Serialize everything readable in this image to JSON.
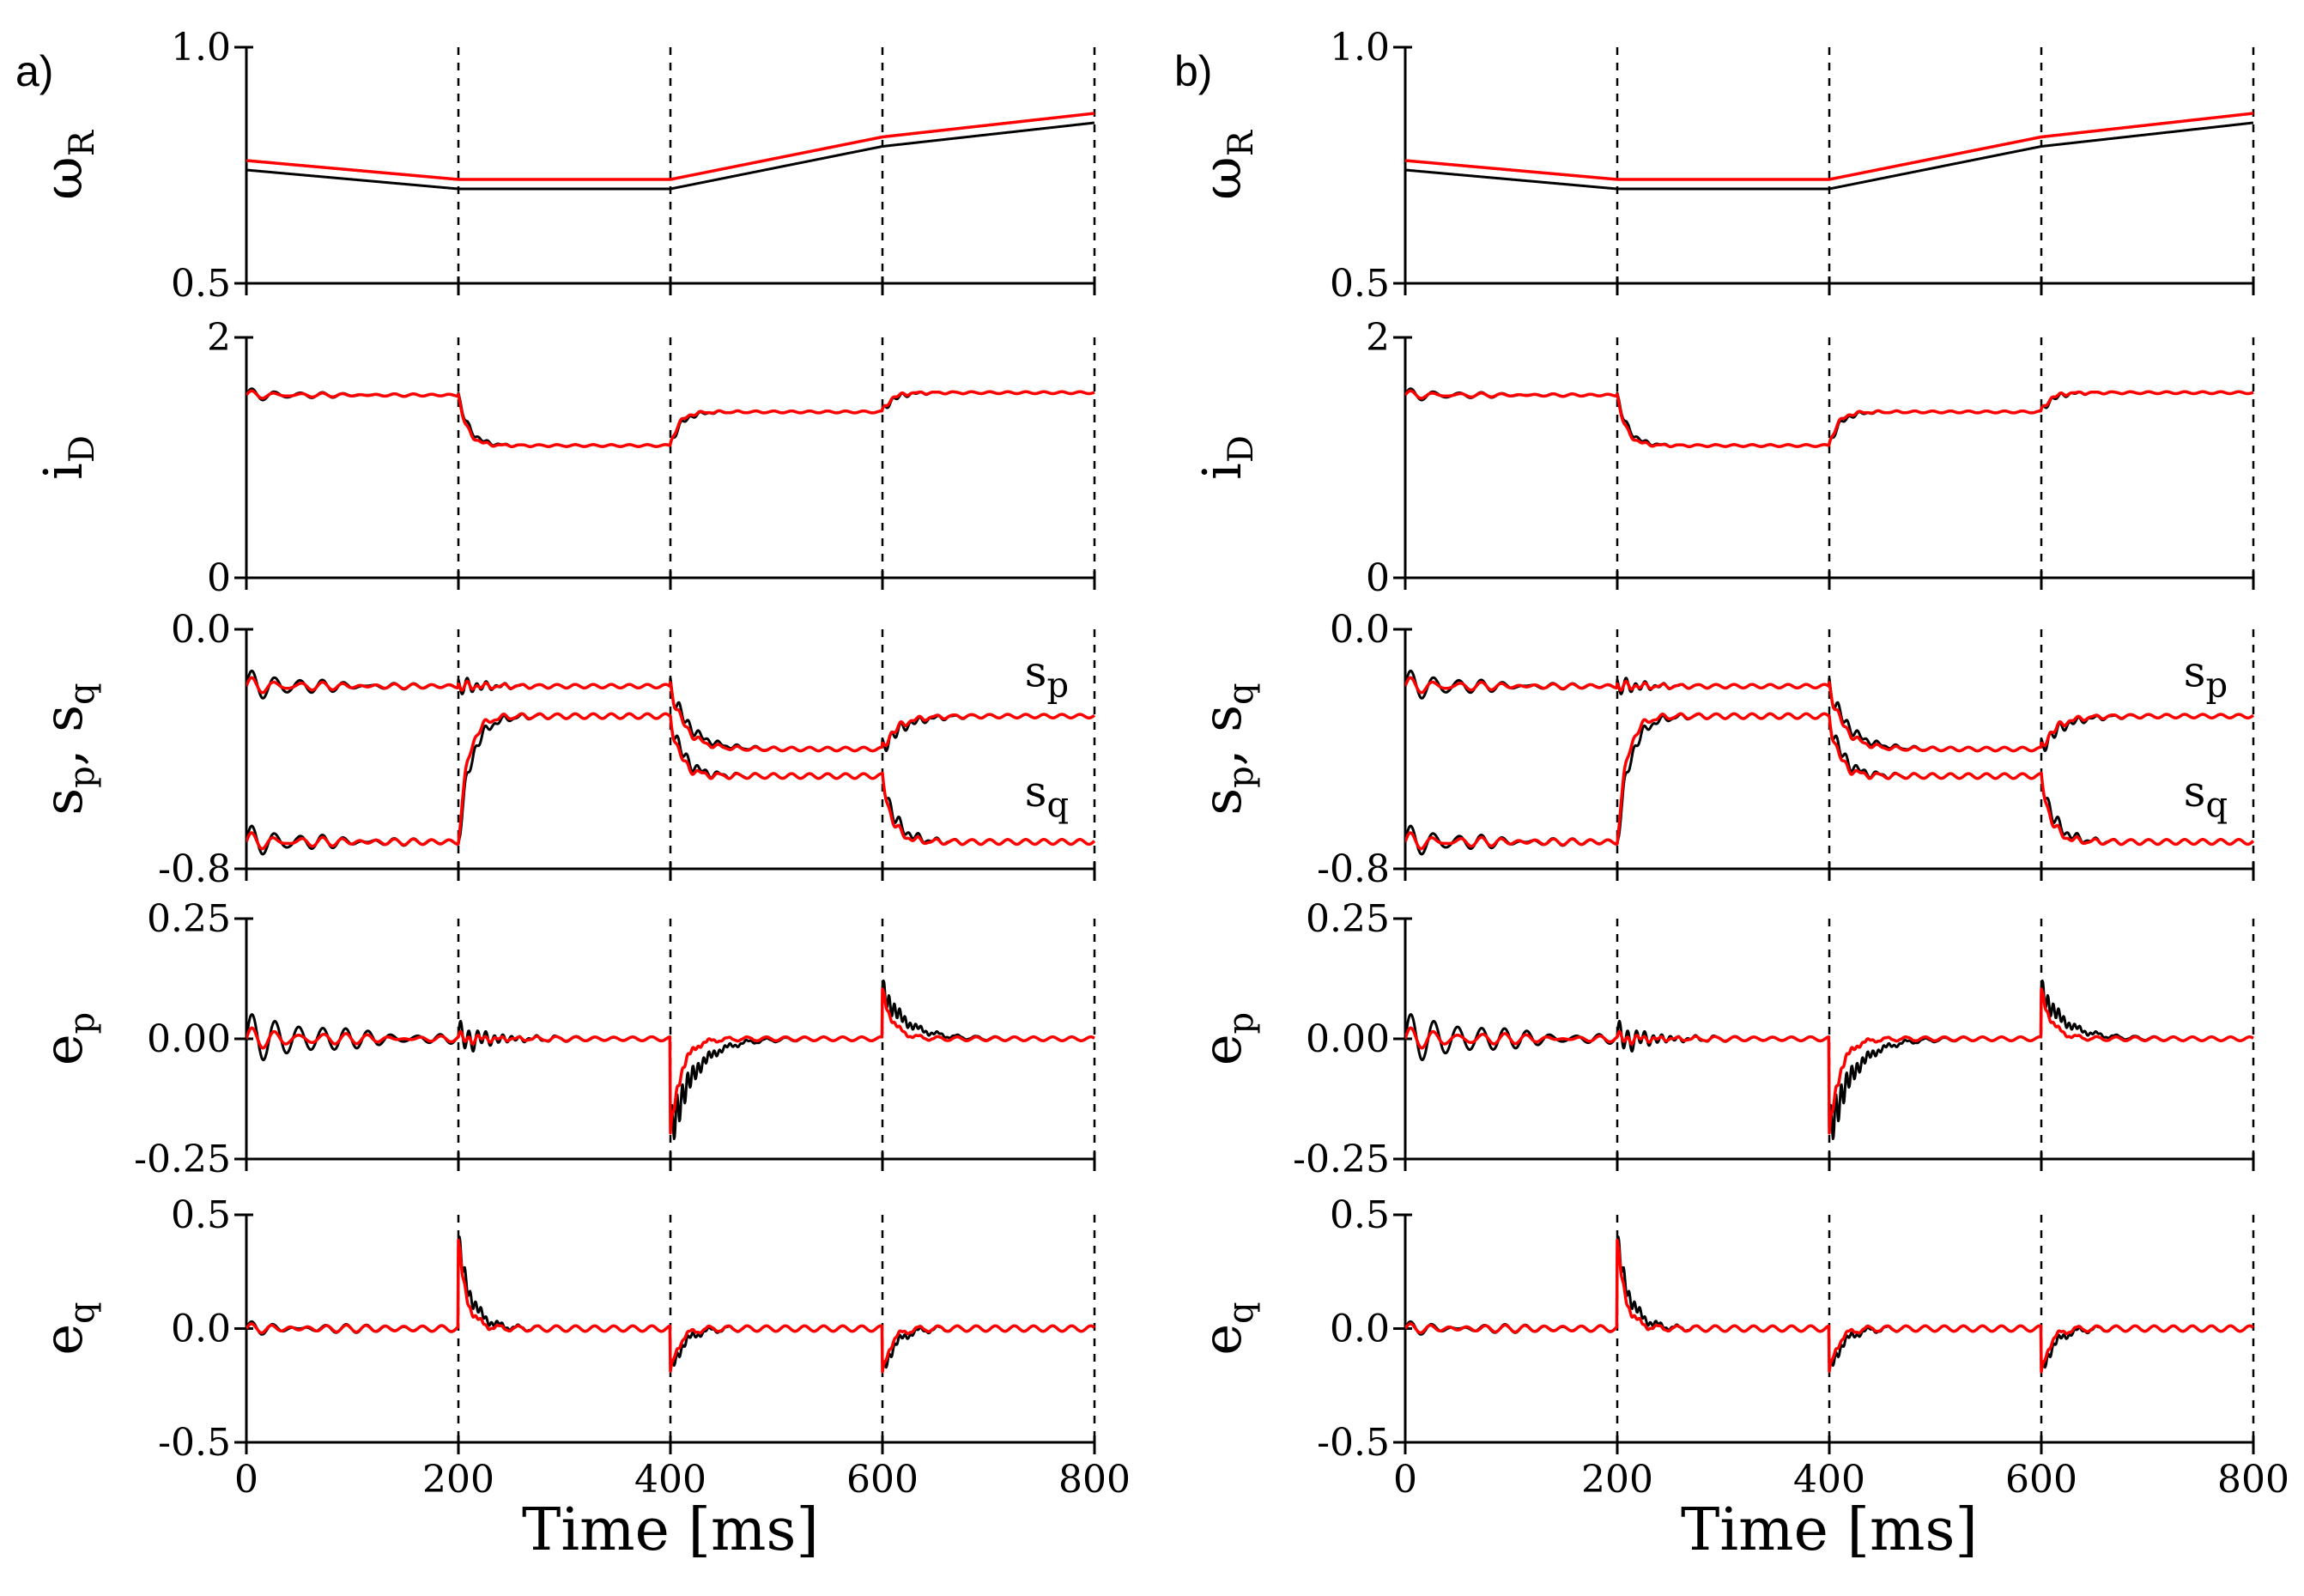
{
  "chart_data": [
    {
      "panel": "a)",
      "type": "line",
      "x_axis": {
        "label": "Time [ms]",
        "ticks": [
          "0",
          "200",
          "400",
          "600",
          "800"
        ],
        "range": [
          0,
          800
        ]
      },
      "event_times": [
        200,
        400,
        600
      ],
      "series_colors": {
        "reference": "#ff0000",
        "response": "#000000"
      },
      "subplots": [
        {
          "id": "omegaR",
          "ylabel": "ω",
          "ylabel_sub": "R",
          "ylim": [
            0.5,
            1.0
          ],
          "yticks": [
            "1.0",
            "0.5"
          ],
          "yticks_values": [
            1.0,
            0.5
          ]
        },
        {
          "id": "iD",
          "ylabel": "i",
          "ylabel_sub": "D",
          "ylim": [
            0,
            2
          ],
          "yticks": [
            "2",
            "0"
          ],
          "yticks_values": [
            2,
            0
          ]
        },
        {
          "id": "sp_sq",
          "ylabel_parts": [
            "s",
            "p",
            ", s",
            "q"
          ],
          "ylim": [
            -0.8,
            0.0
          ],
          "yticks": [
            "0.0",
            "-0.8"
          ],
          "yticks_values": [
            0.0,
            -0.8
          ],
          "annotations": [
            {
              "text": "s",
              "sub": "p"
            },
            {
              "text": "s",
              "sub": "q"
            }
          ]
        },
        {
          "id": "ep",
          "ylabel": "e",
          "ylabel_sub": "p",
          "ylim": [
            -0.25,
            0.25
          ],
          "yticks": [
            "0.25",
            "0.00",
            "-0.25"
          ],
          "yticks_values": [
            0.25,
            0.0,
            -0.25
          ]
        },
        {
          "id": "eq",
          "ylabel": "e",
          "ylabel_sub": "q",
          "ylim": [
            -0.5,
            0.5
          ],
          "yticks": [
            "0.5",
            "0.0",
            "-0.5"
          ],
          "yticks_values": [
            0.5,
            0.0,
            -0.5
          ]
        }
      ]
    },
    {
      "panel": "b)",
      "type": "line",
      "x_axis": {
        "label": "Time [ms]",
        "ticks": [
          "0",
          "200",
          "400",
          "600",
          "800"
        ],
        "range": [
          0,
          800
        ]
      },
      "event_times": [
        200,
        400,
        600
      ],
      "series_colors": {
        "reference": "#ff0000",
        "response": "#000000"
      },
      "subplots": [
        {
          "id": "omegaR",
          "ylabel": "ω",
          "ylabel_sub": "R",
          "ylim": [
            0.5,
            1.0
          ],
          "yticks": [
            "1.0",
            "0.5"
          ],
          "yticks_values": [
            1.0,
            0.5
          ]
        },
        {
          "id": "iD",
          "ylabel": "i",
          "ylabel_sub": "D",
          "ylim": [
            0,
            2
          ],
          "yticks": [
            "2",
            "0"
          ],
          "yticks_values": [
            2,
            0
          ]
        },
        {
          "id": "sp_sq",
          "ylabel_parts": [
            "s",
            "p",
            ", s",
            "q"
          ],
          "ylim": [
            -0.8,
            0.0
          ],
          "yticks": [
            "0.0",
            "-0.8"
          ],
          "yticks_values": [
            0.0,
            -0.8
          ],
          "annotations": [
            {
              "text": "s",
              "sub": "p"
            },
            {
              "text": "s",
              "sub": "q"
            }
          ]
        },
        {
          "id": "ep",
          "ylabel": "e",
          "ylabel_sub": "p",
          "ylim": [
            -0.25,
            0.25
          ],
          "yticks": [
            "0.25",
            "0.00",
            "-0.25"
          ],
          "yticks_values": [
            0.25,
            0.0,
            -0.25
          ]
        },
        {
          "id": "eq",
          "ylabel": "e",
          "ylabel_sub": "q",
          "ylim": [
            -0.5,
            0.5
          ],
          "yticks": [
            "0.5",
            "0.0",
            "-0.5"
          ],
          "yticks_values": [
            0.5,
            0.0,
            -0.5
          ]
        }
      ]
    }
  ],
  "signals": {
    "omegaR": {
      "red_points": [
        [
          0,
          0.76
        ],
        [
          200,
          0.72
        ],
        [
          400,
          0.72
        ],
        [
          600,
          0.81
        ],
        [
          800,
          0.86
        ]
      ],
      "black_points": [
        [
          0,
          0.74
        ],
        [
          200,
          0.7
        ],
        [
          400,
          0.7
        ],
        [
          600,
          0.79
        ],
        [
          800,
          0.84
        ]
      ]
    },
    "iD_levels": [
      1.52,
      1.1,
      1.38,
      1.54
    ],
    "sp_levels": [
      -0.19,
      -0.19,
      -0.4,
      -0.29
    ],
    "sq_levels": [
      -0.71,
      -0.29,
      -0.49,
      -0.71
    ],
    "ep_transient_peaks": [
      {
        "t": 400,
        "value": -0.2
      },
      {
        "t": 600,
        "value": 0.1
      }
    ],
    "eq_transient_peaks": [
      {
        "t": 200,
        "value": 0.38
      },
      {
        "t": 400,
        "value": -0.2
      },
      {
        "t": 600,
        "value": -0.2
      }
    ]
  }
}
